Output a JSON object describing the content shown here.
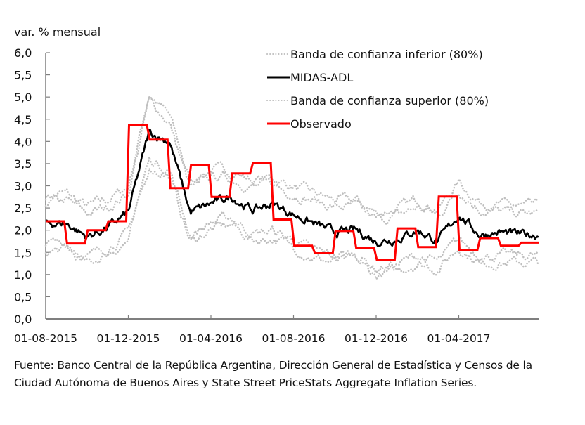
{
  "chart_data": {
    "type": "line",
    "title": "",
    "ylabel": "var. % mensual",
    "xlabel": "",
    "ylim": [
      0,
      6
    ],
    "yticks": [
      "0,0",
      "0,5",
      "1,0",
      "1,5",
      "2,0",
      "2,5",
      "3,0",
      "3,5",
      "4,0",
      "4,5",
      "5,0",
      "5,5",
      "6,0"
    ],
    "xticks": [
      "01-08-2015",
      "01-12-2015",
      "01-04-2016",
      "01-08-2016",
      "01-12-2016",
      "01-04-2017"
    ],
    "grid": false,
    "legend_position": "top-right",
    "legend": [
      {
        "label": "Banda de confianza inferior (80%)",
        "style": "dotted",
        "color": "#BFBFBF"
      },
      {
        "label": "MIDAS-ADL",
        "style": "solid",
        "color": "#000000"
      },
      {
        "label": "Banda de confianza superior (80%)",
        "style": "dotted",
        "color": "#BFBFBF"
      },
      {
        "label": "Observado",
        "style": "solid",
        "color": "#FF0000"
      }
    ],
    "x_months": [
      "2015-08",
      "2015-09",
      "2015-10",
      "2015-11",
      "2015-12",
      "2016-01",
      "2016-02",
      "2016-03",
      "2016-04",
      "2016-05",
      "2016-06",
      "2016-07",
      "2016-08",
      "2016-09",
      "2016-10",
      "2016-11",
      "2016-12",
      "2017-01",
      "2017-02",
      "2017-03",
      "2017-04",
      "2017-05",
      "2017-06",
      "2017-07"
    ],
    "series": [
      {
        "name": "Observado",
        "color": "#FF0000",
        "values": [
          2.2,
          1.7,
          2.0,
          2.2,
          4.37,
          4.04,
          2.95,
          3.46,
          2.75,
          3.28,
          3.52,
          2.24,
          1.65,
          1.48,
          1.98,
          1.6,
          1.33,
          2.04,
          1.62,
          2.76,
          1.55,
          1.82,
          1.65,
          1.72
        ]
      },
      {
        "name": "MIDAS-ADL",
        "color": "#000000",
        "values": [
          2.15,
          2.15,
          1.85,
          2.05,
          2.4,
          4.2,
          4.0,
          2.4,
          2.6,
          2.75,
          2.45,
          2.6,
          2.35,
          2.15,
          1.95,
          2.0,
          1.75,
          1.8,
          2.0,
          1.75,
          2.35,
          1.9,
          1.95,
          1.9
        ]
      },
      {
        "name": "Banda de confianza superior (80%)",
        "color": "#BFBFBF",
        "values": [
          2.7,
          2.75,
          2.45,
          2.6,
          2.9,
          5.0,
          4.5,
          3.0,
          3.3,
          3.25,
          3.05,
          3.1,
          2.9,
          2.75,
          2.6,
          2.6,
          2.3,
          2.4,
          2.6,
          2.4,
          3.0,
          2.55,
          2.5,
          2.45
        ]
      },
      {
        "name": "Banda de confianza inferior (80%)",
        "color": "#BFBFBF",
        "values": [
          1.6,
          1.65,
          1.3,
          1.55,
          1.85,
          3.5,
          3.3,
          1.8,
          2.1,
          2.2,
          1.85,
          1.9,
          1.7,
          1.45,
          1.35,
          1.4,
          1.05,
          1.15,
          1.35,
          1.2,
          1.7,
          1.35,
          1.35,
          1.35
        ]
      }
    ]
  },
  "source_note": "Fuente: Banco Central de la República Argentina, Dirección General de Estadística y Censos de la Ciudad Autónoma de Buenos Aires y State Street PriceStats Aggregate Inflation Series."
}
